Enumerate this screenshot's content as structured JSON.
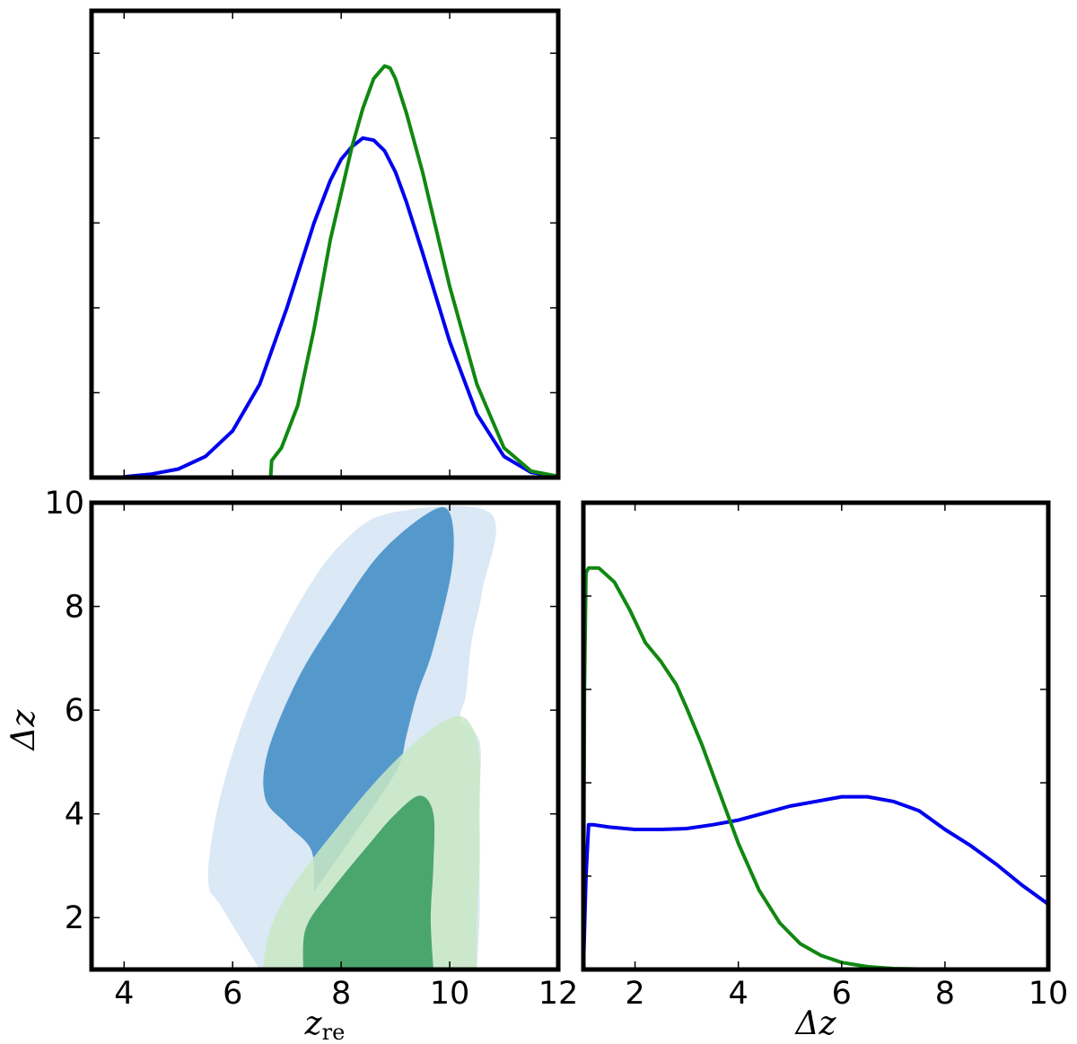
{
  "chart_data": [
    {
      "panel": "zre-marginal",
      "type": "line",
      "xlim": [
        3.4,
        12
      ],
      "ylim": [
        0,
        1.1
      ],
      "x_ticks": [
        4,
        6,
        8,
        10,
        12
      ],
      "y_ticks": [
        0.2,
        0.4,
        0.6,
        0.8,
        1.0
      ],
      "tick_labels_shown": false,
      "colors": {
        "blue": "#0000ee",
        "green": "#118811"
      },
      "series": [
        {
          "color": "blue",
          "x": [
            4.0,
            4.5,
            5.0,
            5.5,
            6.0,
            6.5,
            7.0,
            7.5,
            7.8,
            8.0,
            8.2,
            8.4,
            8.6,
            8.8,
            9.0,
            9.2,
            9.5,
            10.0,
            10.5,
            11.0,
            11.5,
            12.0
          ],
          "y": [
            0.002,
            0.008,
            0.02,
            0.05,
            0.11,
            0.22,
            0.4,
            0.6,
            0.7,
            0.75,
            0.78,
            0.8,
            0.795,
            0.77,
            0.72,
            0.65,
            0.53,
            0.32,
            0.15,
            0.05,
            0.012,
            0.003
          ]
        },
        {
          "color": "green",
          "x": [
            6.7,
            6.72,
            6.9,
            7.2,
            7.5,
            7.8,
            8.0,
            8.2,
            8.4,
            8.6,
            8.8,
            8.9,
            9.0,
            9.2,
            9.5,
            10.0,
            10.5,
            11.0,
            11.5,
            12.0
          ],
          "y": [
            0.0,
            0.04,
            0.07,
            0.17,
            0.35,
            0.56,
            0.67,
            0.78,
            0.87,
            0.94,
            0.97,
            0.965,
            0.94,
            0.86,
            0.72,
            0.45,
            0.22,
            0.07,
            0.015,
            0.003
          ]
        }
      ]
    },
    {
      "panel": "joint-contours",
      "type": "contour",
      "xlabel": "z",
      "xlabel_sub": "re",
      "ylabel": "Δz",
      "xlim": [
        3.4,
        12
      ],
      "ylim": [
        1,
        10
      ],
      "x_ticks": [
        4,
        6,
        8,
        10,
        12
      ],
      "x_tick_labels": [
        "4",
        "6",
        "8",
        "10",
        "12"
      ],
      "y_ticks": [
        2,
        4,
        6,
        8,
        10
      ],
      "y_tick_labels": [
        "2",
        "4",
        "6",
        "8",
        "10"
      ],
      "colors": {
        "blue_outer": "#dbe8f5",
        "blue_inner": "#5599cc",
        "green_outer": "#c8e8c4",
        "green_inner": "#359a5d"
      },
      "regions": [
        {
          "color": "blue_outer",
          "points": [
            [
              6.5,
              1.0
            ],
            [
              5.8,
              2.2
            ],
            [
              5.55,
              2.7
            ],
            [
              5.7,
              4.0
            ],
            [
              6.1,
              5.5
            ],
            [
              6.6,
              6.8
            ],
            [
              7.3,
              8.2
            ],
            [
              8.0,
              9.2
            ],
            [
              8.9,
              9.8
            ],
            [
              10.75,
              9.8
            ],
            [
              10.6,
              8.3
            ],
            [
              10.4,
              7.3
            ],
            [
              10.3,
              6.3
            ],
            [
              10.2,
              5.8
            ],
            [
              10.55,
              5.4
            ],
            [
              10.55,
              4.3
            ],
            [
              10.55,
              3.2
            ],
            [
              10.55,
              2.0
            ],
            [
              10.5,
              1.0
            ]
          ]
        },
        {
          "color": "blue_inner",
          "points": [
            [
              7.5,
              2.5
            ],
            [
              7.45,
              3.3
            ],
            [
              7.0,
              3.8
            ],
            [
              6.6,
              4.3
            ],
            [
              6.65,
              5.2
            ],
            [
              7.2,
              6.6
            ],
            [
              7.9,
              7.8
            ],
            [
              8.7,
              9.0
            ],
            [
              9.6,
              9.8
            ],
            [
              10.0,
              9.8
            ],
            [
              10.05,
              8.8
            ],
            [
              9.7,
              7.2
            ],
            [
              9.4,
              6.3
            ],
            [
              9.2,
              5.5
            ],
            [
              9.05,
              4.9
            ],
            [
              8.5,
              4.0
            ],
            [
              7.7,
              2.8
            ]
          ]
        },
        {
          "color": "green_outer",
          "points": [
            [
              6.55,
              1.0
            ],
            [
              6.7,
              1.8
            ],
            [
              7.1,
              2.6
            ],
            [
              7.9,
              3.7
            ],
            [
              8.7,
              4.7
            ],
            [
              9.5,
              5.5
            ],
            [
              10.1,
              5.88
            ],
            [
              10.4,
              5.7
            ],
            [
              10.55,
              5.1
            ],
            [
              10.55,
              4.0
            ],
            [
              10.55,
              3.0
            ],
            [
              10.5,
              2.0
            ],
            [
              10.5,
              1.0
            ]
          ]
        },
        {
          "color": "green_inner",
          "points": [
            [
              7.3,
              1.0
            ],
            [
              7.35,
              1.8
            ],
            [
              7.8,
              2.5
            ],
            [
              8.5,
              3.4
            ],
            [
              9.0,
              4.0
            ],
            [
              9.45,
              4.35
            ],
            [
              9.7,
              4.0
            ],
            [
              9.7,
              3.0
            ],
            [
              9.65,
              2.0
            ],
            [
              9.7,
              1.0
            ]
          ]
        }
      ]
    },
    {
      "panel": "dz-marginal",
      "type": "line",
      "xlabel": "Δz",
      "xlim": [
        1,
        10
      ],
      "ylim": [
        0,
        1
      ],
      "x_ticks": [
        2,
        4,
        6,
        8,
        10
      ],
      "x_tick_labels": [
        "2",
        "4",
        "6",
        "8",
        "10"
      ],
      "y_ticks": [
        0.2,
        0.4,
        0.6,
        0.8
      ],
      "tick_labels_shown": false,
      "colors": {
        "blue": "#0000ee",
        "green": "#118811"
      },
      "series": [
        {
          "color": "blue",
          "x": [
            1.0,
            1.05,
            1.1,
            1.2,
            1.5,
            2.0,
            2.5,
            3.0,
            3.5,
            4.0,
            4.5,
            5.0,
            5.5,
            6.0,
            6.5,
            7.0,
            7.5,
            8.0,
            8.5,
            9.0,
            9.5,
            10.0
          ],
          "y": [
            0.0,
            0.2,
            0.31,
            0.31,
            0.305,
            0.3,
            0.3,
            0.302,
            0.31,
            0.32,
            0.335,
            0.35,
            0.36,
            0.37,
            0.37,
            0.36,
            0.34,
            0.3,
            0.265,
            0.225,
            0.18,
            0.14
          ]
        },
        {
          "color": "green",
          "x": [
            1.0,
            1.02,
            1.05,
            1.1,
            1.3,
            1.6,
            1.9,
            2.2,
            2.5,
            2.8,
            3.0,
            3.3,
            3.6,
            4.0,
            4.4,
            4.8,
            5.2,
            5.6,
            6.0,
            6.5,
            7.0,
            7.5,
            8.0
          ],
          "y": [
            0.0,
            0.6,
            0.85,
            0.86,
            0.86,
            0.83,
            0.77,
            0.7,
            0.66,
            0.61,
            0.56,
            0.48,
            0.39,
            0.27,
            0.17,
            0.1,
            0.055,
            0.03,
            0.015,
            0.006,
            0.002,
            0.001,
            0.0
          ]
        }
      ]
    }
  ]
}
